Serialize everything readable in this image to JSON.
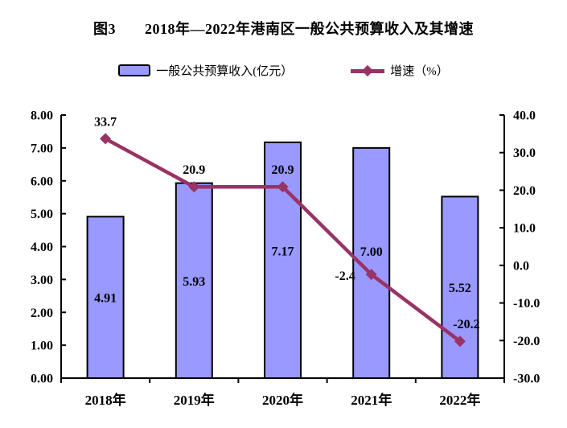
{
  "title": {
    "prefix": "图3",
    "text": "2018年—2022年港南区一般公共预算收入及其增速"
  },
  "legend": {
    "bar_label": "一般公共预算收入(亿元）",
    "line_label": "增速（%）"
  },
  "colors": {
    "bar_fill": "#9999FF",
    "bar_border": "#000000",
    "line": "#993366",
    "text": "#000000",
    "background": "#FFFFFF"
  },
  "chart_data": {
    "type": "bar",
    "subtype": "bar+line combo, dual axis",
    "title": "图3 2018年—2022年港南区一般公共预算收入及其增速",
    "categories": [
      "2018年",
      "2019年",
      "2020年",
      "2021年",
      "2022年"
    ],
    "series": [
      {
        "name": "一般公共预算收入(亿元）",
        "type": "bar",
        "axis": "left",
        "color": "#9999FF",
        "border_color": "#000000",
        "values": [
          4.91,
          5.93,
          7.17,
          7.0,
          5.52
        ],
        "labels": [
          "4.91",
          "5.93",
          "7.17",
          "7.00",
          "5.52"
        ]
      },
      {
        "name": "增速（%）",
        "type": "line",
        "axis": "right",
        "color": "#993366",
        "marker": "diamond",
        "values": [
          33.7,
          20.9,
          20.9,
          -2.4,
          -20.2
        ],
        "labels": [
          "33.7",
          "20.9",
          "20.9",
          "-2.4",
          "-20.2"
        ]
      }
    ],
    "left_axis": {
      "min": 0,
      "max": 8,
      "step": 1,
      "tick_labels": [
        "0.00",
        "1.00",
        "2.00",
        "3.00",
        "4.00",
        "5.00",
        "6.00",
        "7.00",
        "8.00"
      ]
    },
    "right_axis": {
      "min": -30,
      "max": 40,
      "step": 10,
      "tick_labels": [
        "-30.0",
        "-20.0",
        "-10.0",
        "0.0",
        "10.0",
        "20.0",
        "30.0",
        "40.0"
      ]
    },
    "grid": false,
    "legend_position": "top"
  }
}
